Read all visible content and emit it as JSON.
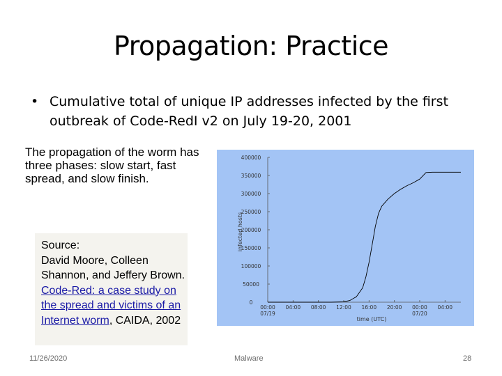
{
  "slide": {
    "title": "Propagation: Practice",
    "bullet": "Cumulative total of unique IP addresses infected by the first outbreak of Code-RedI v2 on July 19-20, 2001",
    "phases_text": "The propagation of the worm has three phases: slow start, fast spread, and slow finish."
  },
  "source": {
    "label": "Source:",
    "authors": "David Moore, Colleen Shannon, and Jeffery Brown.",
    "link_text": "Code-Red: a case study on the spread and victims of an Internet worm",
    "suffix": ", CAIDA, 2002"
  },
  "chart_data": {
    "type": "line",
    "xlabel": "time (UTC)",
    "ylabel": "infected hosts",
    "x_ticks": [
      [
        "00:00",
        "07/19"
      ],
      [
        "04:00",
        ""
      ],
      [
        "08:00",
        ""
      ],
      [
        "12:00",
        ""
      ],
      [
        "16:00",
        ""
      ],
      [
        "20:00",
        ""
      ],
      [
        "00:00",
        "07/20"
      ],
      [
        "04:00",
        ""
      ]
    ],
    "y_ticks": [
      "0",
      "50000",
      "100000",
      "150000",
      "200000",
      "250000",
      "300000",
      "350000",
      "400000"
    ],
    "ylim": [
      0,
      400000
    ],
    "xlim_hours": [
      0,
      30.5
    ],
    "background": "#a3c4f5",
    "line_color": "#000000",
    "series": [
      {
        "hours": [
          0,
          10,
          12,
          13,
          14,
          15,
          15.5,
          16,
          16.5,
          17,
          17.5,
          18,
          19,
          20,
          21,
          22,
          23,
          24,
          25,
          26,
          27,
          28,
          30.5
        ],
        "values": [
          0,
          0,
          1000,
          5000,
          15000,
          40000,
          70000,
          110000,
          160000,
          210000,
          245000,
          265000,
          285000,
          300000,
          312000,
          322000,
          330000,
          340000,
          358000,
          359000,
          359000,
          359000,
          359000
        ]
      }
    ]
  },
  "footer": {
    "date": "11/26/2020",
    "center": "Malware",
    "page": "28"
  }
}
